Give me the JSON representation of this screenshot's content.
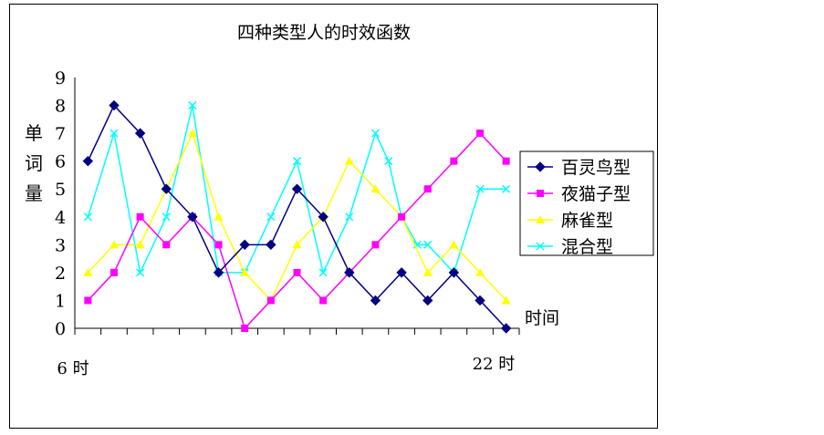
{
  "chart_data": {
    "type": "line",
    "title": "四种类型人的时效函数",
    "ylabel": "单词量",
    "xlabel_right": "时间",
    "x_start_label": "6 时",
    "x_end_label": "22 时",
    "x_points": 17,
    "ylim": [
      0,
      9
    ],
    "yticks": [
      "0",
      "1",
      "2",
      "3",
      "4",
      "5",
      "6",
      "7",
      "8",
      "9"
    ],
    "grid": false,
    "legend_position": "right",
    "series": [
      {
        "name": "百灵鸟型",
        "color": "#000080",
        "marker": "diamond",
        "values": [
          6,
          8,
          7,
          5,
          4,
          2,
          3,
          3,
          5,
          4,
          2,
          1,
          2,
          1,
          2,
          1,
          0
        ]
      },
      {
        "name": "夜猫子型",
        "color": "#ff00ff",
        "marker": "square",
        "values": [
          1,
          2,
          4,
          3,
          4,
          3,
          0,
          1,
          2,
          1,
          2,
          3,
          4,
          5,
          6,
          7,
          6
        ]
      },
      {
        "name": "麻雀型",
        "color": "#ffff00",
        "marker": "triangle",
        "values": [
          2,
          3,
          3,
          5,
          7,
          4,
          2,
          1,
          3,
          4,
          6,
          5,
          4,
          2,
          3,
          2,
          1
        ]
      },
      {
        "name": "混合型",
        "color": "#00ffff",
        "marker": "x",
        "x": [
          0,
          1,
          2,
          3,
          4,
          5,
          6,
          7,
          8,
          9,
          10,
          11,
          11.5,
          12,
          12.6,
          13,
          14,
          15,
          16
        ],
        "values": [
          4,
          7,
          2,
          4,
          8,
          2,
          2,
          4,
          6,
          2,
          4,
          7,
          6,
          4,
          3,
          3,
          2,
          5,
          5
        ]
      }
    ]
  }
}
